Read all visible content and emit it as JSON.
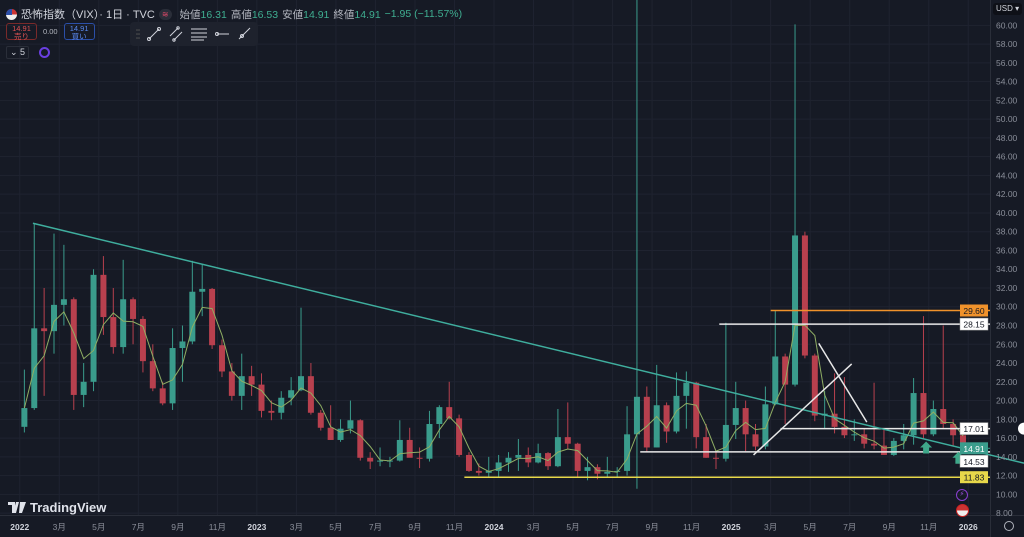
{
  "header": {
    "title": "恐怖指数（VIX）· 1日 · TVC",
    "ohlc": [
      {
        "label": "始値",
        "value": "16.31"
      },
      {
        "label": "高値",
        "value": "16.53"
      },
      {
        "label": "安値",
        "value": "14.91"
      },
      {
        "label": "終値",
        "value": "14.91"
      }
    ],
    "change": "−1.95 (−11.57%)",
    "toggle_icon": "≋"
  },
  "trade": {
    "sell_price": "14.91",
    "sell_label": "売り",
    "spread": "0.00",
    "buy_price": "14.91",
    "buy_label": "買い"
  },
  "layers": {
    "count": "5"
  },
  "toolbar": {
    "tools": [
      "drag-handle",
      "trend-line-tool",
      "parallel-channel-tool",
      "fib-retracement-tool",
      "horizontal-ray-tool",
      "ray-tool"
    ]
  },
  "currency": "USD ▾",
  "brand": "TradingView",
  "colors": {
    "background": "#161a25",
    "up": "#3a9c8c",
    "down": "#b8404e",
    "trendline": "#3fae9e",
    "ma": "#8fae64",
    "orange": "#f0922b",
    "yellow": "#e8d84a",
    "white": "#e8e8e8",
    "arrow": "#3fa88a"
  },
  "chart_data": {
    "type": "candlestick",
    "symbol": "VIX",
    "ylim": [
      7.8,
      62.7
    ],
    "xlim": [
      "2021-12-01",
      "2026-02-04"
    ],
    "yticks": [
      "8.00",
      "10.00",
      "12.00",
      "14.00",
      "16.00",
      "18.00",
      "20.00",
      "22.00",
      "24.00",
      "26.00",
      "28.00",
      "30.00",
      "32.00",
      "34.00",
      "36.00",
      "38.00",
      "40.00",
      "42.00",
      "44.00",
      "46.00",
      "48.00",
      "50.00",
      "52.00",
      "54.00",
      "56.00",
      "58.00",
      "60.00"
    ],
    "xticks": [
      {
        "date": "2022-01-01",
        "label": "2022",
        "bold": true
      },
      {
        "date": "2022-03-01",
        "label": "3月"
      },
      {
        "date": "2022-05-01",
        "label": "5月"
      },
      {
        "date": "2022-07-01",
        "label": "7月"
      },
      {
        "date": "2022-09-01",
        "label": "9月"
      },
      {
        "date": "2022-11-01",
        "label": "11月"
      },
      {
        "date": "2023-01-01",
        "label": "2023",
        "bold": true
      },
      {
        "date": "2023-03-01",
        "label": "3月"
      },
      {
        "date": "2023-05-01",
        "label": "5月"
      },
      {
        "date": "2023-07-01",
        "label": "7月"
      },
      {
        "date": "2023-09-01",
        "label": "9月"
      },
      {
        "date": "2023-11-01",
        "label": "11月"
      },
      {
        "date": "2024-01-01",
        "label": "2024",
        "bold": true
      },
      {
        "date": "2024-03-01",
        "label": "3月"
      },
      {
        "date": "2024-05-01",
        "label": "5月"
      },
      {
        "date": "2024-07-01",
        "label": "7月"
      },
      {
        "date": "2024-09-01",
        "label": "9月"
      },
      {
        "date": "2024-11-01",
        "label": "11月"
      },
      {
        "date": "2025-01-01",
        "label": "2025",
        "bold": true
      },
      {
        "date": "2025-03-01",
        "label": "3月"
      },
      {
        "date": "2025-05-01",
        "label": "5月"
      },
      {
        "date": "2025-07-01",
        "label": "7月"
      },
      {
        "date": "2025-09-01",
        "label": "9月"
      },
      {
        "date": "2025-11-01",
        "label": "11月"
      },
      {
        "date": "2026-01-01",
        "label": "2026",
        "bold": true
      }
    ],
    "candles_ohlc": [
      [
        "2022-01-08",
        17.2,
        23.3,
        16.6,
        19.2
      ],
      [
        "2022-01-23",
        19.2,
        38.9,
        19,
        27.7
      ],
      [
        "2022-02-08",
        27.7,
        32,
        20.5,
        27.4
      ],
      [
        "2022-02-23",
        27.4,
        37.8,
        25,
        30.2
      ],
      [
        "2022-03-08",
        30.2,
        36.6,
        28,
        30.8
      ],
      [
        "2022-03-23",
        30.8,
        31,
        19,
        20.6
      ],
      [
        "2022-04-08",
        20.6,
        24,
        19.3,
        22
      ],
      [
        "2022-04-23",
        22,
        34,
        21,
        33.4
      ],
      [
        "2022-05-08",
        33.4,
        35.4,
        27,
        28.9
      ],
      [
        "2022-05-23",
        28.9,
        32,
        25,
        25.7
      ],
      [
        "2022-06-08",
        25.7,
        35,
        25,
        30.8
      ],
      [
        "2022-06-23",
        30.8,
        31,
        26,
        28.7
      ],
      [
        "2022-07-08",
        28.7,
        29,
        23,
        24.2
      ],
      [
        "2022-07-23",
        24.2,
        26,
        21,
        21.3
      ],
      [
        "2022-08-08",
        21.3,
        22,
        19.5,
        19.7
      ],
      [
        "2022-08-23",
        19.7,
        27.7,
        19,
        25.6
      ],
      [
        "2022-09-08",
        25.6,
        28,
        22,
        26.3
      ],
      [
        "2022-09-23",
        26.3,
        34.9,
        26,
        31.6
      ],
      [
        "2022-10-08",
        31.6,
        34.5,
        29,
        31.9
      ],
      [
        "2022-10-23",
        31.9,
        32,
        25.5,
        25.9
      ],
      [
        "2022-11-08",
        25.9,
        26.5,
        22.5,
        23.1
      ],
      [
        "2022-11-23",
        23.1,
        24,
        20,
        20.5
      ],
      [
        "2022-12-08",
        20.5,
        25,
        19,
        22.6
      ],
      [
        "2022-12-23",
        22.6,
        23.7,
        20.5,
        21.7
      ],
      [
        "2023-01-08",
        21.7,
        22.9,
        18.2,
        18.9
      ],
      [
        "2023-01-23",
        18.9,
        20,
        17.9,
        18.7
      ],
      [
        "2023-02-08",
        18.7,
        21,
        18,
        20.3
      ],
      [
        "2023-02-23",
        20.3,
        22.5,
        19.5,
        21.1
      ],
      [
        "2023-03-08",
        21.1,
        29.9,
        21,
        22.6
      ],
      [
        "2023-03-23",
        22.6,
        24,
        18.5,
        18.7
      ],
      [
        "2023-04-08",
        18.7,
        19,
        16.8,
        17.1
      ],
      [
        "2023-04-23",
        17.1,
        19.5,
        15.8,
        15.8
      ],
      [
        "2023-05-08",
        15.8,
        18,
        15.6,
        17
      ],
      [
        "2023-05-23",
        17,
        20,
        16.5,
        17.9
      ],
      [
        "2023-06-08",
        17.9,
        18,
        13.6,
        13.9
      ],
      [
        "2023-06-23",
        13.9,
        14.5,
        12.7,
        13.5
      ],
      [
        "2023-07-08",
        13.5,
        15,
        13,
        13.6
      ],
      [
        "2023-07-23",
        13.6,
        14,
        12.9,
        13.6
      ],
      [
        "2023-08-08",
        13.6,
        17.9,
        13.5,
        15.8
      ],
      [
        "2023-08-23",
        15.8,
        17.1,
        14,
        13.9
      ],
      [
        "2023-09-08",
        13.9,
        15,
        12.8,
        13.8
      ],
      [
        "2023-09-23",
        13.8,
        18.9,
        13.5,
        17.5
      ],
      [
        "2023-10-08",
        17.5,
        19.5,
        16,
        19.3
      ],
      [
        "2023-10-23",
        19.3,
        22,
        18,
        18.1
      ],
      [
        "2023-11-08",
        18.1,
        18.5,
        14,
        14.2
      ],
      [
        "2023-11-23",
        14.2,
        14.5,
        12.4,
        12.5
      ],
      [
        "2023-12-08",
        12.5,
        13.3,
        12,
        12.3
      ],
      [
        "2023-12-23",
        12.3,
        14,
        11.8,
        12.5
      ],
      [
        "2024-01-08",
        12.5,
        14.2,
        11.9,
        13.4
      ],
      [
        "2024-01-23",
        13.4,
        14.5,
        12.4,
        13.9
      ],
      [
        "2024-02-08",
        13.9,
        15.9,
        12.5,
        14.2
      ],
      [
        "2024-02-23",
        14.2,
        15,
        12.9,
        13.4
      ],
      [
        "2024-03-08",
        13.4,
        15.4,
        13.3,
        14.4
      ],
      [
        "2024-03-23",
        14.4,
        14.5,
        12.6,
        13
      ],
      [
        "2024-04-08",
        13,
        19.1,
        12.9,
        16.1
      ],
      [
        "2024-04-23",
        16.1,
        19.8,
        14.8,
        15.4
      ],
      [
        "2024-05-08",
        15.4,
        15.5,
        11.9,
        12.5
      ],
      [
        "2024-05-23",
        12.5,
        14,
        11.5,
        12.9
      ],
      [
        "2024-06-08",
        12.9,
        13.2,
        11.6,
        12.2
      ],
      [
        "2024-06-23",
        12.2,
        14,
        11.8,
        12.4
      ],
      [
        "2024-07-08",
        12.4,
        12.9,
        11.9,
        12.5
      ],
      [
        "2024-07-23",
        12.5,
        19.4,
        12,
        16.4
      ],
      [
        "2024-08-08",
        16.4,
        65.7,
        10.6,
        20.4
      ],
      [
        "2024-08-23",
        20.4,
        21.5,
        14.5,
        15
      ],
      [
        "2024-09-08",
        15,
        23.8,
        15,
        19.5
      ],
      [
        "2024-09-23",
        19.5,
        19.8,
        15.5,
        16.7
      ],
      [
        "2024-10-08",
        16.7,
        23,
        16.5,
        20.5
      ],
      [
        "2024-10-23",
        20.5,
        23.1,
        17,
        21.9
      ],
      [
        "2024-11-08",
        21.9,
        22,
        14.9,
        16.1
      ],
      [
        "2024-11-23",
        16.1,
        17.5,
        13.9,
        13.9
      ],
      [
        "2024-12-08",
        13.9,
        14.5,
        12.7,
        13.8
      ],
      [
        "2024-12-23",
        13.8,
        28.3,
        13.5,
        17.4
      ],
      [
        "2025-01-08",
        17.4,
        22,
        15.9,
        19.2
      ],
      [
        "2025-01-23",
        19.2,
        20,
        14.6,
        16.4
      ],
      [
        "2025-02-08",
        16.4,
        17.5,
        14.7,
        15.1
      ],
      [
        "2025-02-23",
        15.1,
        21.5,
        14.8,
        19.6
      ],
      [
        "2025-03-08",
        19.6,
        29.6,
        19.5,
        24.7
      ],
      [
        "2025-03-23",
        24.7,
        25,
        17.5,
        21.7
      ],
      [
        "2025-04-08",
        21.7,
        60.1,
        21.5,
        37.6
      ],
      [
        "2025-04-23",
        37.6,
        38,
        24.5,
        24.8
      ],
      [
        "2025-05-08",
        24.8,
        25,
        17.8,
        18.4
      ],
      [
        "2025-05-23",
        18.4,
        21,
        17,
        18.6
      ],
      [
        "2025-06-08",
        18.6,
        22.9,
        16.5,
        17.2
      ],
      [
        "2025-06-23",
        17.2,
        22.5,
        16,
        16.3
      ],
      [
        "2025-07-08",
        16.3,
        18,
        15.7,
        16.4
      ],
      [
        "2025-07-23",
        16.4,
        17,
        14.9,
        15.4
      ],
      [
        "2025-08-08",
        15.4,
        21.9,
        14.8,
        15.2
      ],
      [
        "2025-08-23",
        15.2,
        17,
        14.2,
        14.2
      ],
      [
        "2025-09-08",
        14.2,
        16,
        14.1,
        15.7
      ],
      [
        "2025-09-23",
        15.7,
        17.5,
        14.8,
        16.3
      ],
      [
        "2025-10-08",
        16.3,
        22.4,
        15.3,
        20.8
      ],
      [
        "2025-10-23",
        20.8,
        29,
        15.9,
        16.4
      ],
      [
        "2025-11-08",
        16.4,
        20,
        16.2,
        19.1
      ],
      [
        "2025-11-23",
        19.1,
        28,
        17,
        17.5
      ],
      [
        "2025-12-08",
        17.5,
        18,
        15.2,
        16.3
      ],
      [
        "2025-12-23",
        16.3,
        17,
        14.5,
        14.91
      ]
    ],
    "price_labels": [
      {
        "value": 29.6,
        "text": "29.60",
        "color": "orange"
      },
      {
        "value": 28.15,
        "text": "28.15",
        "color": "white"
      },
      {
        "value": 17.01,
        "text": "17.01",
        "color": "white"
      },
      {
        "value": 14.91,
        "text": "14.91",
        "color": "up"
      },
      {
        "value": 14.53,
        "text": "14.53",
        "color": "white"
      },
      {
        "value": 11.83,
        "text": "11.83",
        "color": "yellow"
      }
    ],
    "drawings": {
      "trendlines": [
        {
          "from": [
            "2022-01-21",
            38.9
          ],
          "to": [
            "2026-02-04",
            14.2
          ],
          "color": "trendline",
          "extend_right": true
        },
        {
          "from": [
            "2025-02-05",
            14.2
          ],
          "to": [
            "2025-07-04",
            23.9
          ],
          "color": "white"
        },
        {
          "from": [
            "2025-05-14",
            26.1
          ],
          "to": [
            "2025-07-27",
            17.7
          ],
          "color": "white"
        }
      ],
      "horizontal_rays": [
        {
          "from": "2025-03-01",
          "price": 29.6,
          "color": "orange"
        },
        {
          "from": "2024-12-13",
          "price": 28.15,
          "color": "white"
        },
        {
          "from": "2025-03-16",
          "price": 17.01,
          "color": "white"
        },
        {
          "from": "2024-08-13",
          "price": 14.53,
          "color": "white"
        },
        {
          "from": "2023-11-16",
          "price": 11.83,
          "color": "yellow"
        }
      ],
      "arrows_up": [
        {
          "date": "2025-10-27",
          "price": 15.0
        },
        {
          "date": "2025-12-16",
          "price": 13.9
        }
      ]
    }
  }
}
